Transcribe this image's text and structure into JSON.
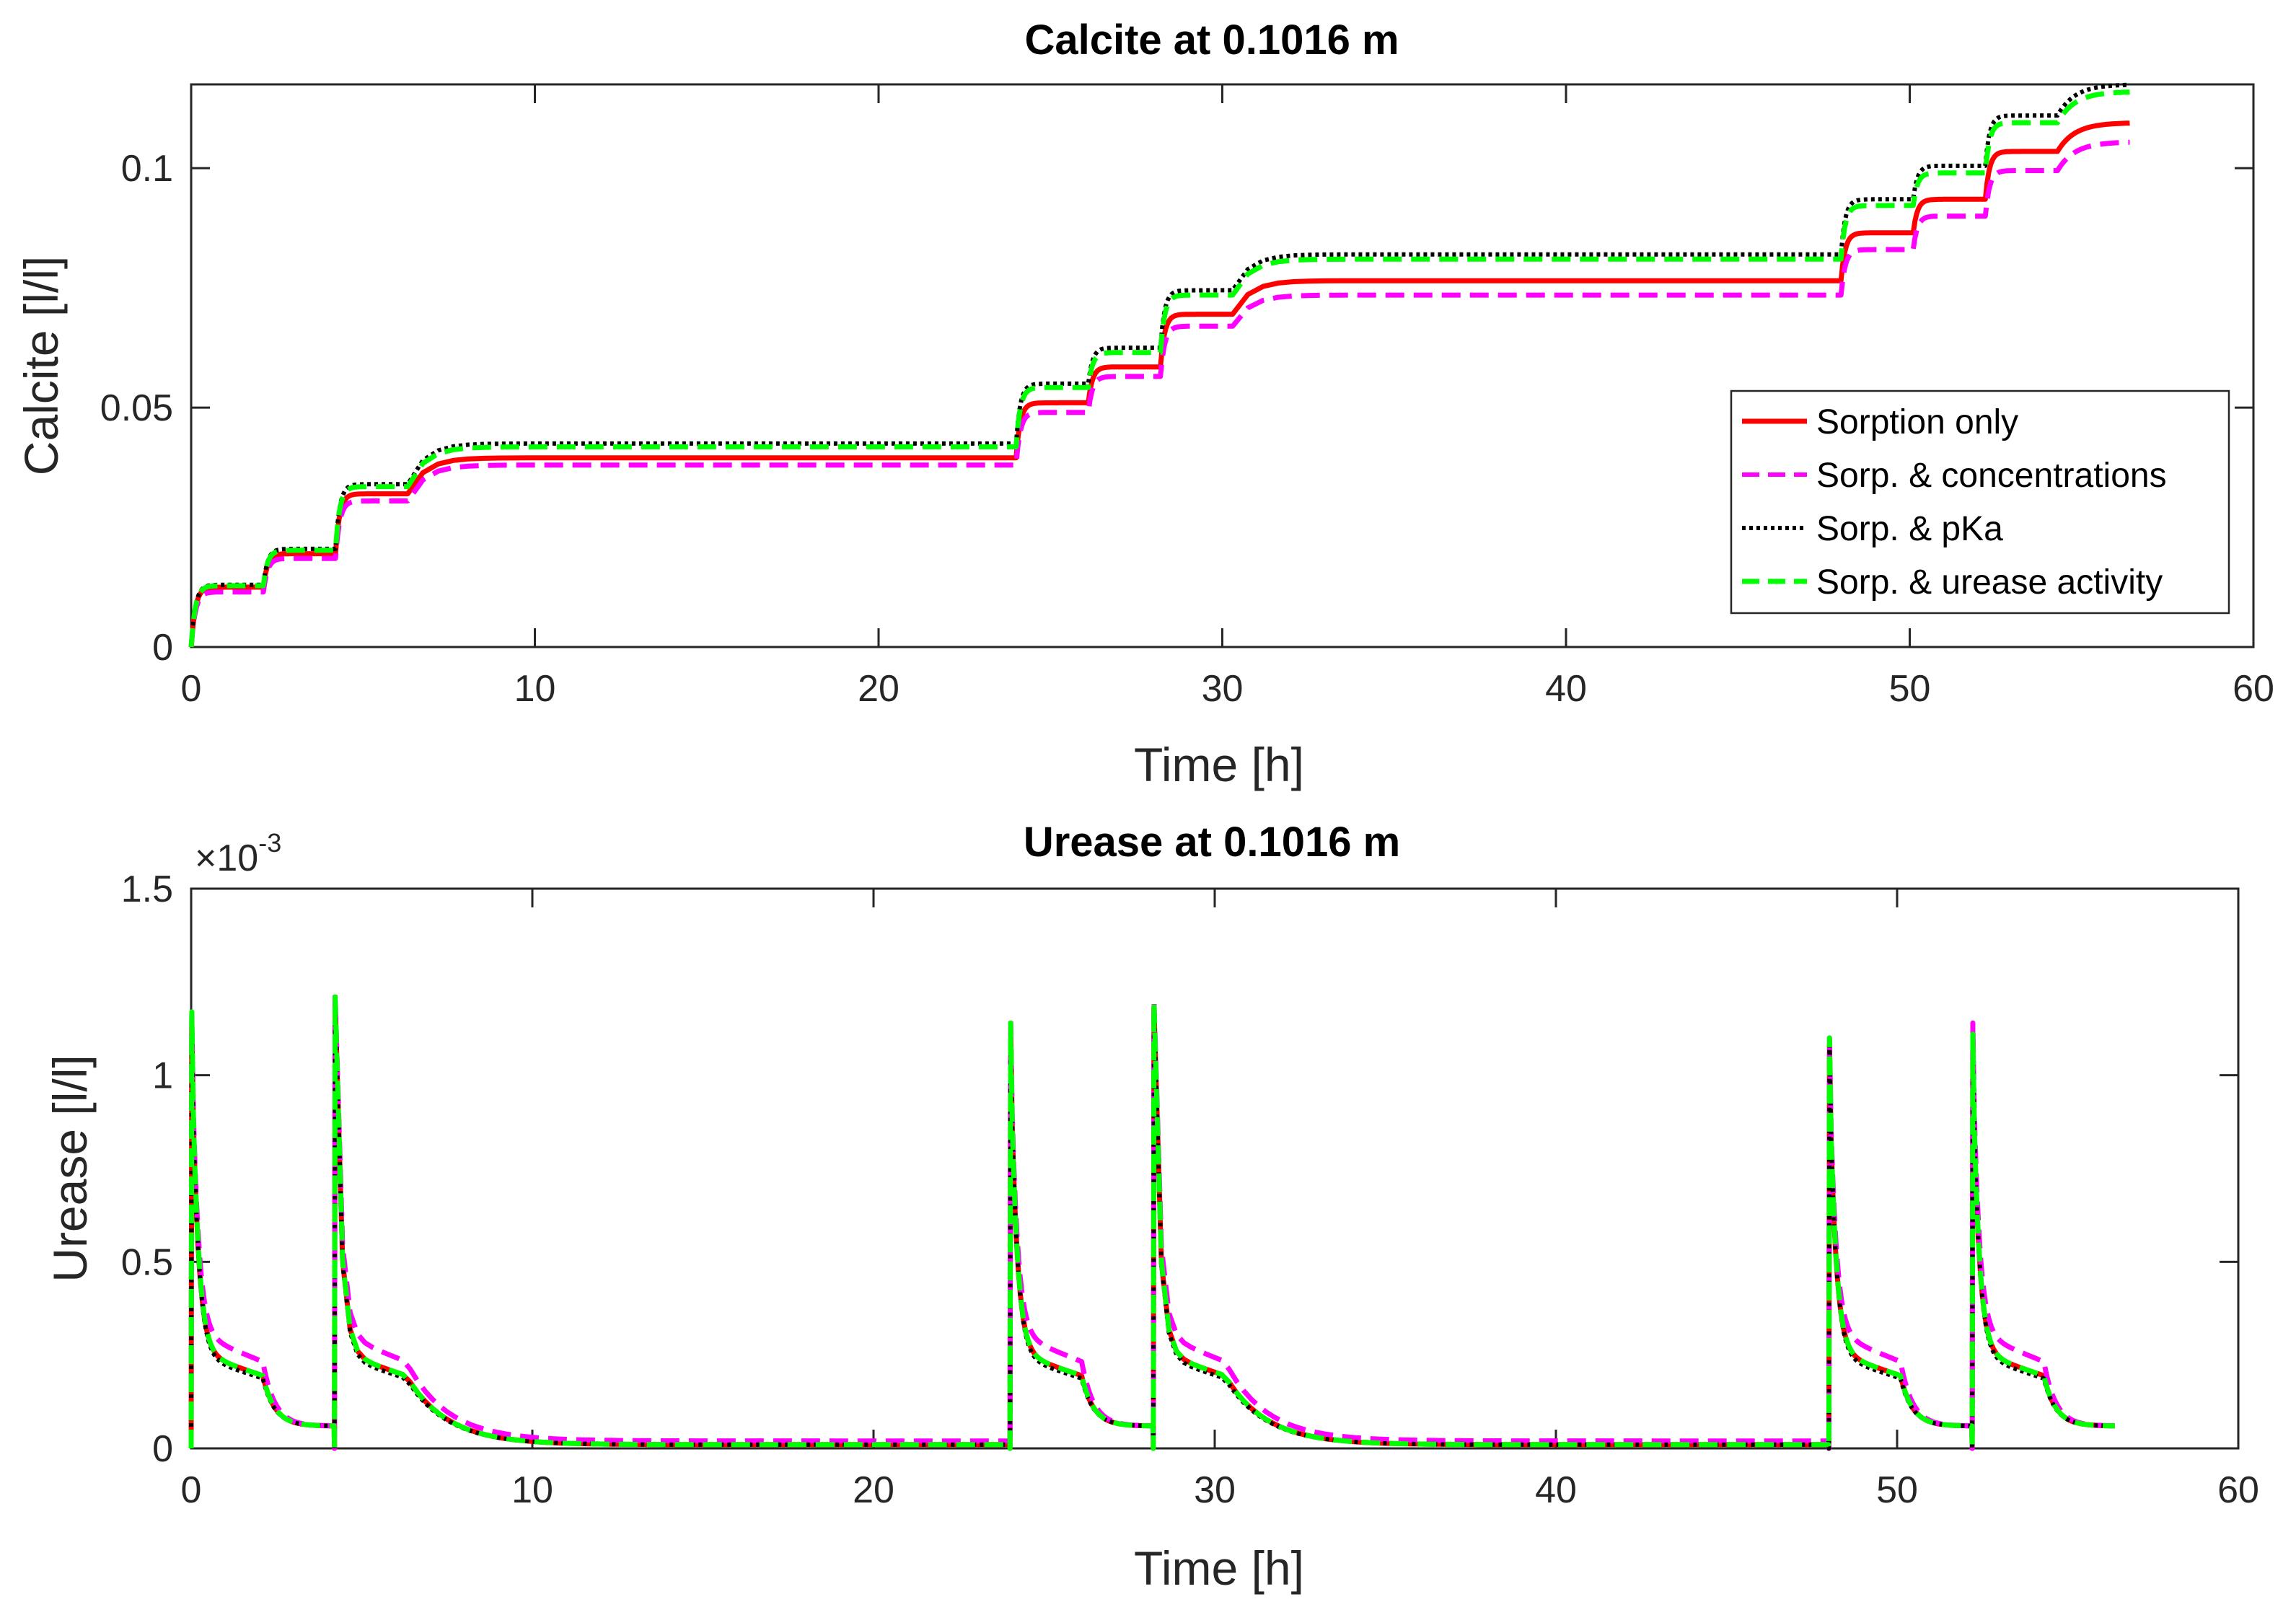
{
  "chart_data": [
    {
      "type": "line",
      "title": "Calcite at 0.1016 m",
      "xlabel": "Time [h]",
      "ylabel": "Calcite [l/l]",
      "xlim": [
        0,
        60
      ],
      "ylim": [
        0,
        0.1175
      ],
      "xticks": [
        0,
        10,
        20,
        30,
        40,
        50,
        60
      ],
      "xtick_labels": [
        "0",
        "10",
        "20",
        "30",
        "40",
        "50",
        "60"
      ],
      "yticks": [
        0,
        0.05,
        0.1
      ],
      "ytick_labels": [
        "0",
        "0.05",
        "0.1"
      ],
      "legend_position": "bottom-right inside",
      "injection_times_h": [
        0,
        2.1,
        4.2,
        6.3,
        24,
        26.1,
        28.2,
        30.3,
        48,
        50.1,
        52.2,
        54.3
      ],
      "series": [
        {
          "name": "Sorption only",
          "color": "#ff0000",
          "dash": "solid",
          "plateaus": [
            0.0125,
            0.0195,
            0.032,
            0.0395,
            0.051,
            0.0585,
            0.0695,
            0.0765,
            0.0865,
            0.0935,
            0.1035,
            0.1095
          ]
        },
        {
          "name": "Sorp. & concentrations",
          "color": "#ff00ff",
          "dash": "dashed",
          "plateaus": [
            0.0115,
            0.0185,
            0.0305,
            0.038,
            0.049,
            0.0565,
            0.067,
            0.0735,
            0.083,
            0.09,
            0.0995,
            0.1055
          ]
        },
        {
          "name": "Sorp. & pKa",
          "color": "#000000",
          "dash": "dotted",
          "plateaus": [
            0.013,
            0.0205,
            0.034,
            0.0425,
            0.055,
            0.0625,
            0.0745,
            0.082,
            0.0935,
            0.1005,
            0.111,
            0.1175
          ]
        },
        {
          "name": "Sorp. & urease activity",
          "color": "#00ff00",
          "dash": "dashed",
          "plateaus": [
            0.0128,
            0.0202,
            0.0335,
            0.0418,
            0.0542,
            0.0615,
            0.0735,
            0.081,
            0.0922,
            0.099,
            0.1095,
            0.116
          ]
        }
      ]
    },
    {
      "type": "line",
      "title": "Urease at 0.1016 m",
      "xlabel": "Time [h]",
      "ylabel": "Urease [l/l]",
      "exponent_label": "×10",
      "exponent_power": "-3",
      "xlim": [
        0,
        60
      ],
      "ylim": [
        0,
        1.5
      ],
      "y_unit_scale": 0.001,
      "xticks": [
        0,
        10,
        20,
        30,
        40,
        50,
        60
      ],
      "xtick_labels": [
        "0",
        "10",
        "20",
        "30",
        "40",
        "50",
        "60"
      ],
      "yticks": [
        0,
        0.5,
        1,
        1.5
      ],
      "ytick_labels": [
        "0",
        "0.5",
        "1",
        "1.5"
      ],
      "series": [
        {
          "name": "Sorption only",
          "color": "#ff0000",
          "dash": "solid",
          "peaks": [
            1.15,
            1.2,
            1.13,
            1.18,
            1.08,
            1.1
          ],
          "mid_level": 0.26,
          "tail_end": 0.01
        },
        {
          "name": "Sorp. & concentrations",
          "color": "#ff00ff",
          "dash": "dashed",
          "peaks": [
            1.16,
            1.22,
            1.15,
            1.2,
            1.1,
            1.14
          ],
          "mid_level": 0.31,
          "tail_end": 0.02
        },
        {
          "name": "Sorp. & pKa",
          "color": "#000000",
          "dash": "dotted",
          "peaks": [
            1.15,
            1.2,
            1.14,
            1.18,
            1.09,
            1.1
          ],
          "mid_level": 0.25,
          "tail_end": 0.01
        },
        {
          "name": "Sorp. & urease activity",
          "color": "#00ff00",
          "dash": "dashed",
          "peaks": [
            1.17,
            1.21,
            1.14,
            1.19,
            1.1,
            1.11
          ],
          "mid_level": 0.26,
          "tail_end": 0.01
        }
      ]
    }
  ]
}
